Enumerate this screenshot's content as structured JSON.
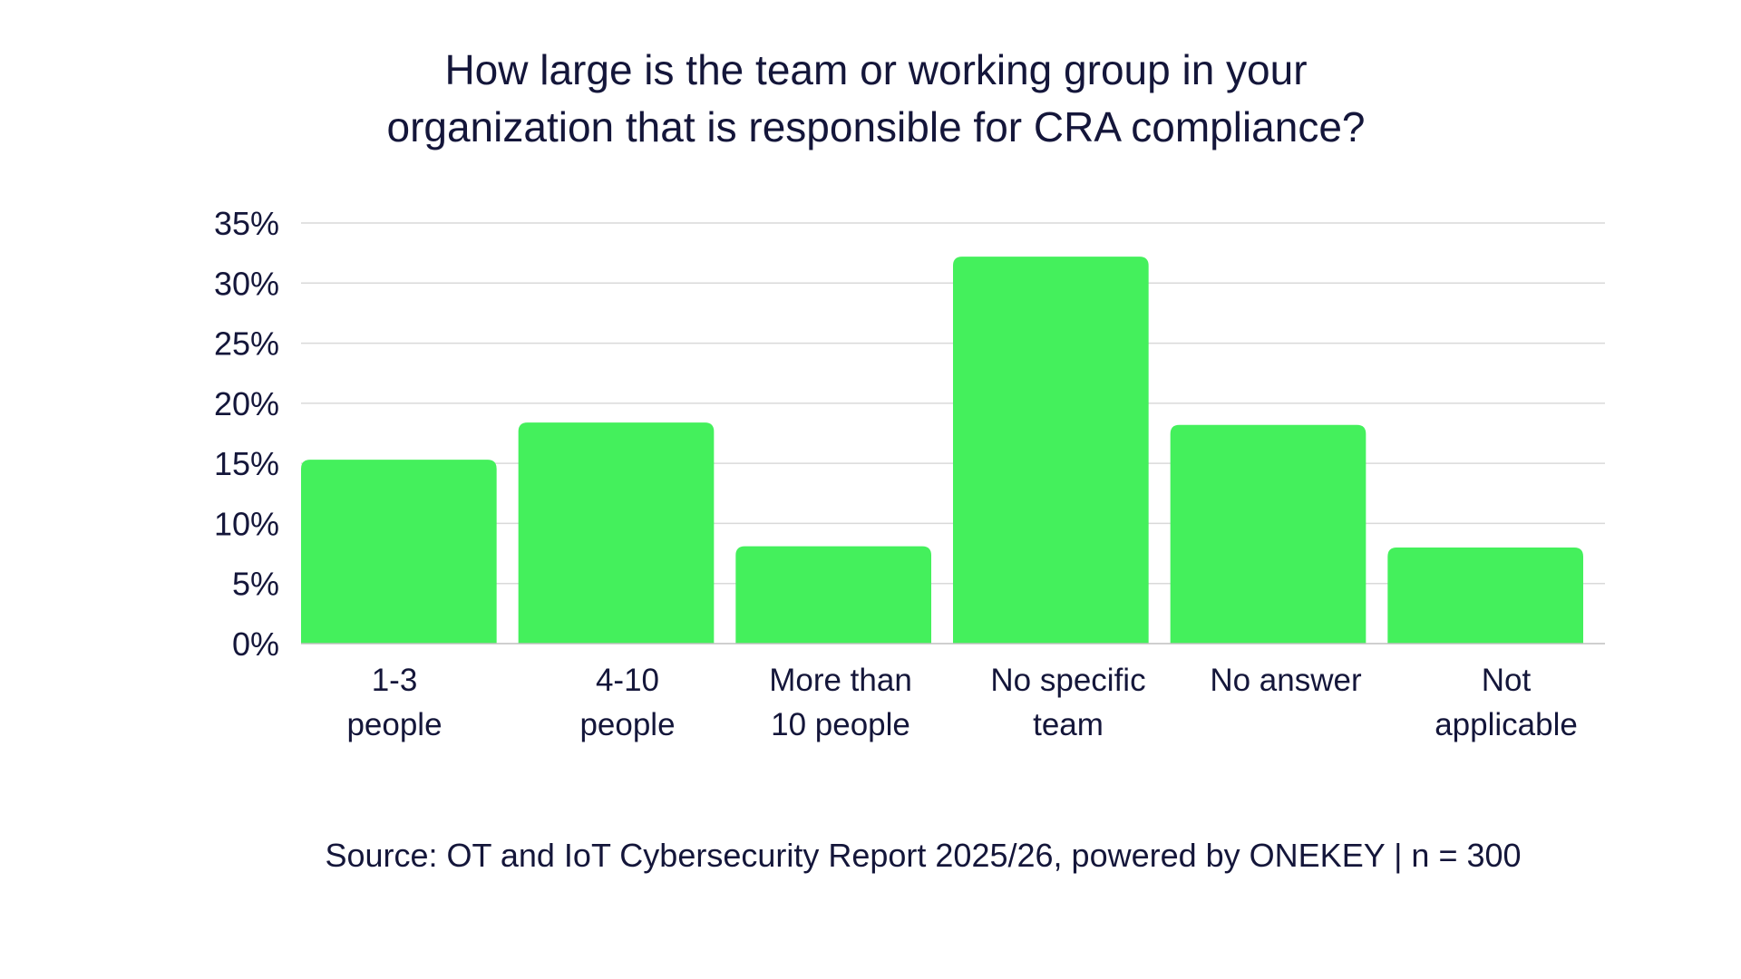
{
  "title_lines": [
    "How large is the team or working group in your",
    "organization that is responsible for CRA compliance?"
  ],
  "source": "Source: OT and IoT Cybersecurity Report 2025/26, powered by ONEKEY | n = 300",
  "colors": {
    "bar": "#44f05c",
    "text": "#14163a",
    "grid": "#d9d9d9",
    "background": "#ffffff"
  },
  "chart_data": {
    "type": "bar",
    "categories": [
      [
        "1-3",
        "people"
      ],
      [
        "4-10",
        "people"
      ],
      [
        "More than",
        "10 people"
      ],
      [
        "No specific",
        "team"
      ],
      [
        "No answer"
      ],
      [
        "Not",
        "applicable"
      ]
    ],
    "values": [
      15.3,
      18.4,
      8.1,
      32.2,
      18.2,
      8.0
    ],
    "ylim": [
      0,
      35
    ],
    "yticks": [
      0,
      5,
      10,
      15,
      20,
      25,
      30,
      35
    ],
    "ytick_labels": [
      "0%",
      "5%",
      "10%",
      "15%",
      "20%",
      "25%",
      "30%",
      "35%"
    ],
    "xlabel": "",
    "ylabel": "",
    "grid": true,
    "legend": "none"
  }
}
